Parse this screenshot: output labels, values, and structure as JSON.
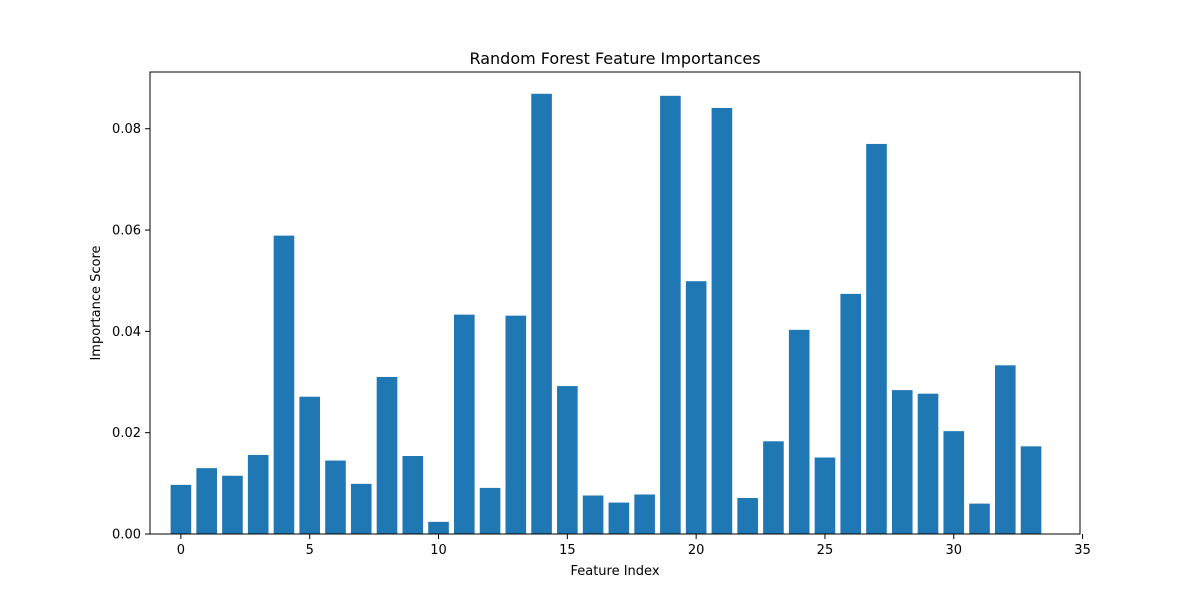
{
  "chart_data": {
    "type": "bar",
    "title": "Random Forest Feature Importances",
    "xlabel": "Feature Index",
    "ylabel": "Importance Score",
    "x": [
      0,
      1,
      2,
      3,
      4,
      5,
      6,
      7,
      8,
      9,
      10,
      11,
      12,
      13,
      14,
      15,
      16,
      17,
      18,
      19,
      20,
      21,
      22,
      23,
      24,
      25,
      26,
      27,
      28,
      29,
      30,
      31,
      32,
      33
    ],
    "values": [
      0.0097,
      0.013,
      0.0115,
      0.0156,
      0.0589,
      0.0271,
      0.0145,
      0.0099,
      0.031,
      0.0154,
      0.0024,
      0.0433,
      0.0091,
      0.0431,
      0.0869,
      0.0292,
      0.0076,
      0.0062,
      0.0078,
      0.0865,
      0.0499,
      0.0841,
      0.0071,
      0.0183,
      0.0403,
      0.0151,
      0.0474,
      0.077,
      0.0284,
      0.0277,
      0.0203,
      0.006,
      0.0333,
      0.0173
    ],
    "bar_color": "#1f77b4",
    "xlim": [
      -1.2,
      34.9
    ],
    "ylim": [
      0,
      0.0912
    ],
    "xticks": [
      0,
      5,
      10,
      15,
      20,
      25,
      30,
      35
    ],
    "xtick_labels": [
      "0",
      "5",
      "10",
      "15",
      "20",
      "25",
      "30",
      "35"
    ],
    "yticks": [
      0,
      0.02,
      0.04,
      0.06,
      0.08
    ],
    "ytick_labels": [
      "0.00",
      "0.02",
      "0.04",
      "0.06",
      "0.08"
    ],
    "grid": false,
    "legend": "none"
  }
}
